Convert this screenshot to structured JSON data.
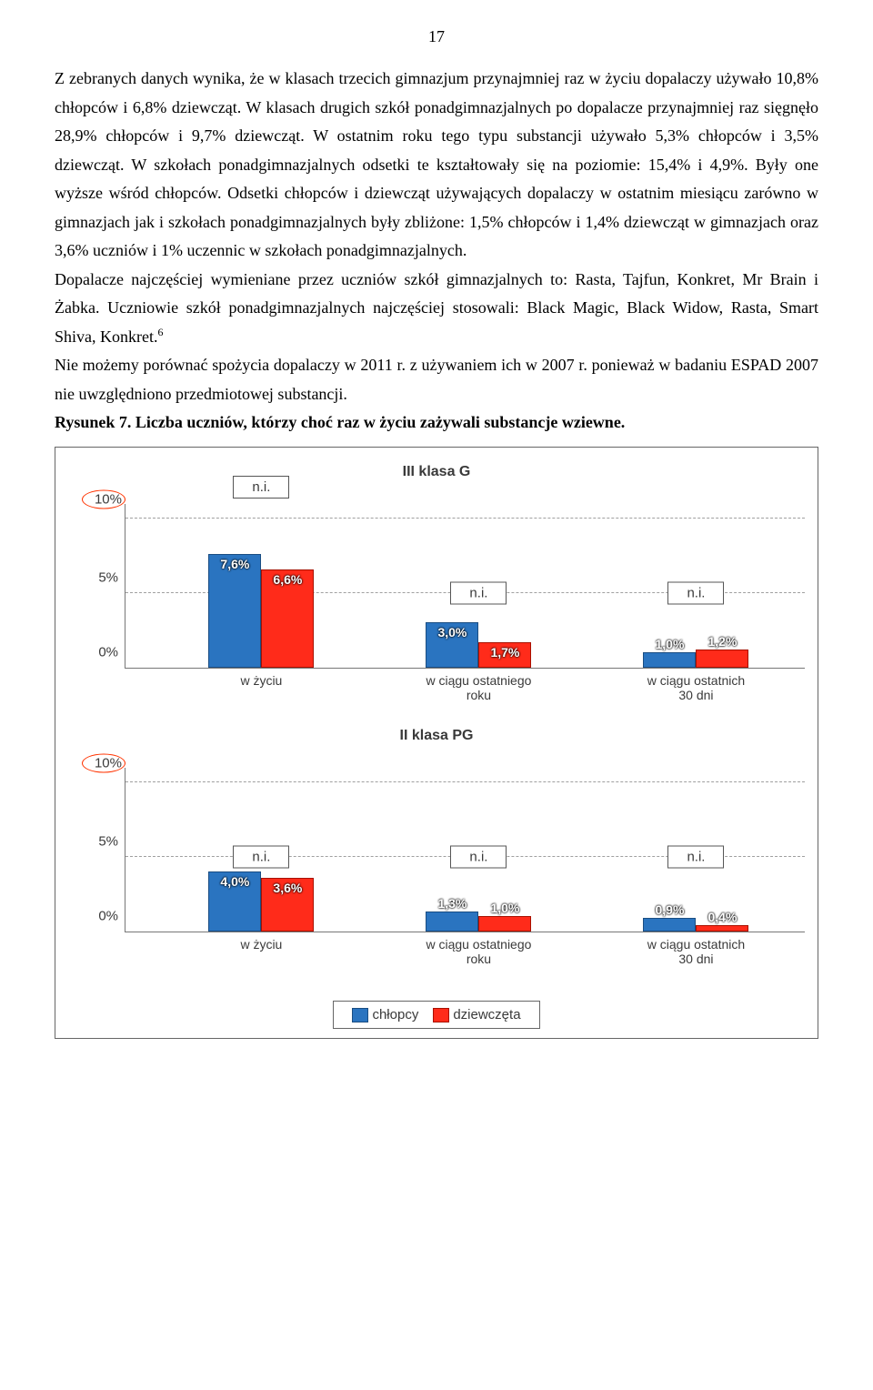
{
  "page_number": "17",
  "paragraphs": {
    "p1": "Z zebranych danych wynika, że w klasach trzecich gimnazjum przynajmniej raz w życiu dopalaczy używało 10,8% chłopców i 6,8% dziewcząt. W klasach drugich szkół ponadgimnazjalnych po dopalacze przynajmniej raz sięgnęło 28,9% chłopców i 9,7% dziewcząt. W ostatnim roku tego typu substancji używało 5,3% chłopców i 3,5% dziewcząt. W szkołach ponadgimnazjalnych odsetki te kształtowały się na poziomie: 15,4% i 4,9%. Były one wyższe wśród chłopców. Odsetki chłopców i dziewcząt używających dopalaczy w ostatnim miesiącu zarówno w gimnazjach jak i szkołach ponadgimnazjalnych były zbliżone: 1,5% chłopców i 1,4% dziewcząt w gimnazjach oraz 3,6% uczniów i 1% uczennic w szkołach ponadgimnazjalnych.",
    "p2": "Dopalacze najczęściej wymieniane przez uczniów szkół gimnazjalnych to: Rasta, Tajfun, Konkret, Mr Brain i Żabka. Uczniowie szkół ponadgimnazjalnych najczęściej stosowali: Black Magic, Black Widow, Rasta, Smart Shiva, Konkret.",
    "fn": "6",
    "p3": "Nie możemy porównać spożycia dopalaczy w 2011 r. z używaniem ich w 2007 r. ponieważ w badaniu ESPAD 2007 nie uwzględniono przedmiotowej substancji.",
    "fig_caption": "Rysunek 7.  Liczba uczniów, którzy choć raz w życiu zażywali substancje wziewne."
  },
  "chartA": {
    "title": "III klasa G",
    "yticks": [
      "0%",
      "5%",
      "10%"
    ],
    "ymax": 11,
    "categories": [
      "w życiu",
      "w ciągu ostatniego\nroku",
      "w ciągu ostatnich\n30 dni"
    ],
    "series": {
      "boys": [
        7.6,
        3.0,
        1.0
      ],
      "girls": [
        6.6,
        1.7,
        1.2
      ]
    },
    "labels": {
      "boys": [
        "7,6%",
        "3,0%",
        "1,0%"
      ],
      "girls": [
        "6,6%",
        "1,7%",
        "1,2%"
      ]
    },
    "ni_top_group": 0,
    "ni_on": [
      1,
      2
    ],
    "ni_text": "n.i.",
    "colors": {
      "boys": "#2a74c0",
      "girls": "#ff2b1a"
    }
  },
  "chartB": {
    "title": "II klasa PG",
    "yticks": [
      "0%",
      "5%",
      "10%"
    ],
    "ymax": 11,
    "categories": [
      "w życiu",
      "w ciągu ostatniego\nroku",
      "w ciągu ostatnich\n30 dni"
    ],
    "series": {
      "boys": [
        4.0,
        1.3,
        0.9
      ],
      "girls": [
        3.6,
        1.0,
        0.4
      ]
    },
    "labels": {
      "boys": [
        "4,0%",
        "1,3%",
        "0,9%"
      ],
      "girls": [
        "3,6%",
        "1,0%",
        "0,4%"
      ]
    },
    "ni_top_group": -1,
    "ni_on": [
      0,
      1,
      2
    ],
    "ni_text": "n.i.",
    "colors": {
      "boys": "#2a74c0",
      "girls": "#ff2b1a"
    }
  },
  "legend": {
    "boys": "chłopcy",
    "girls": "dziewczęta"
  }
}
